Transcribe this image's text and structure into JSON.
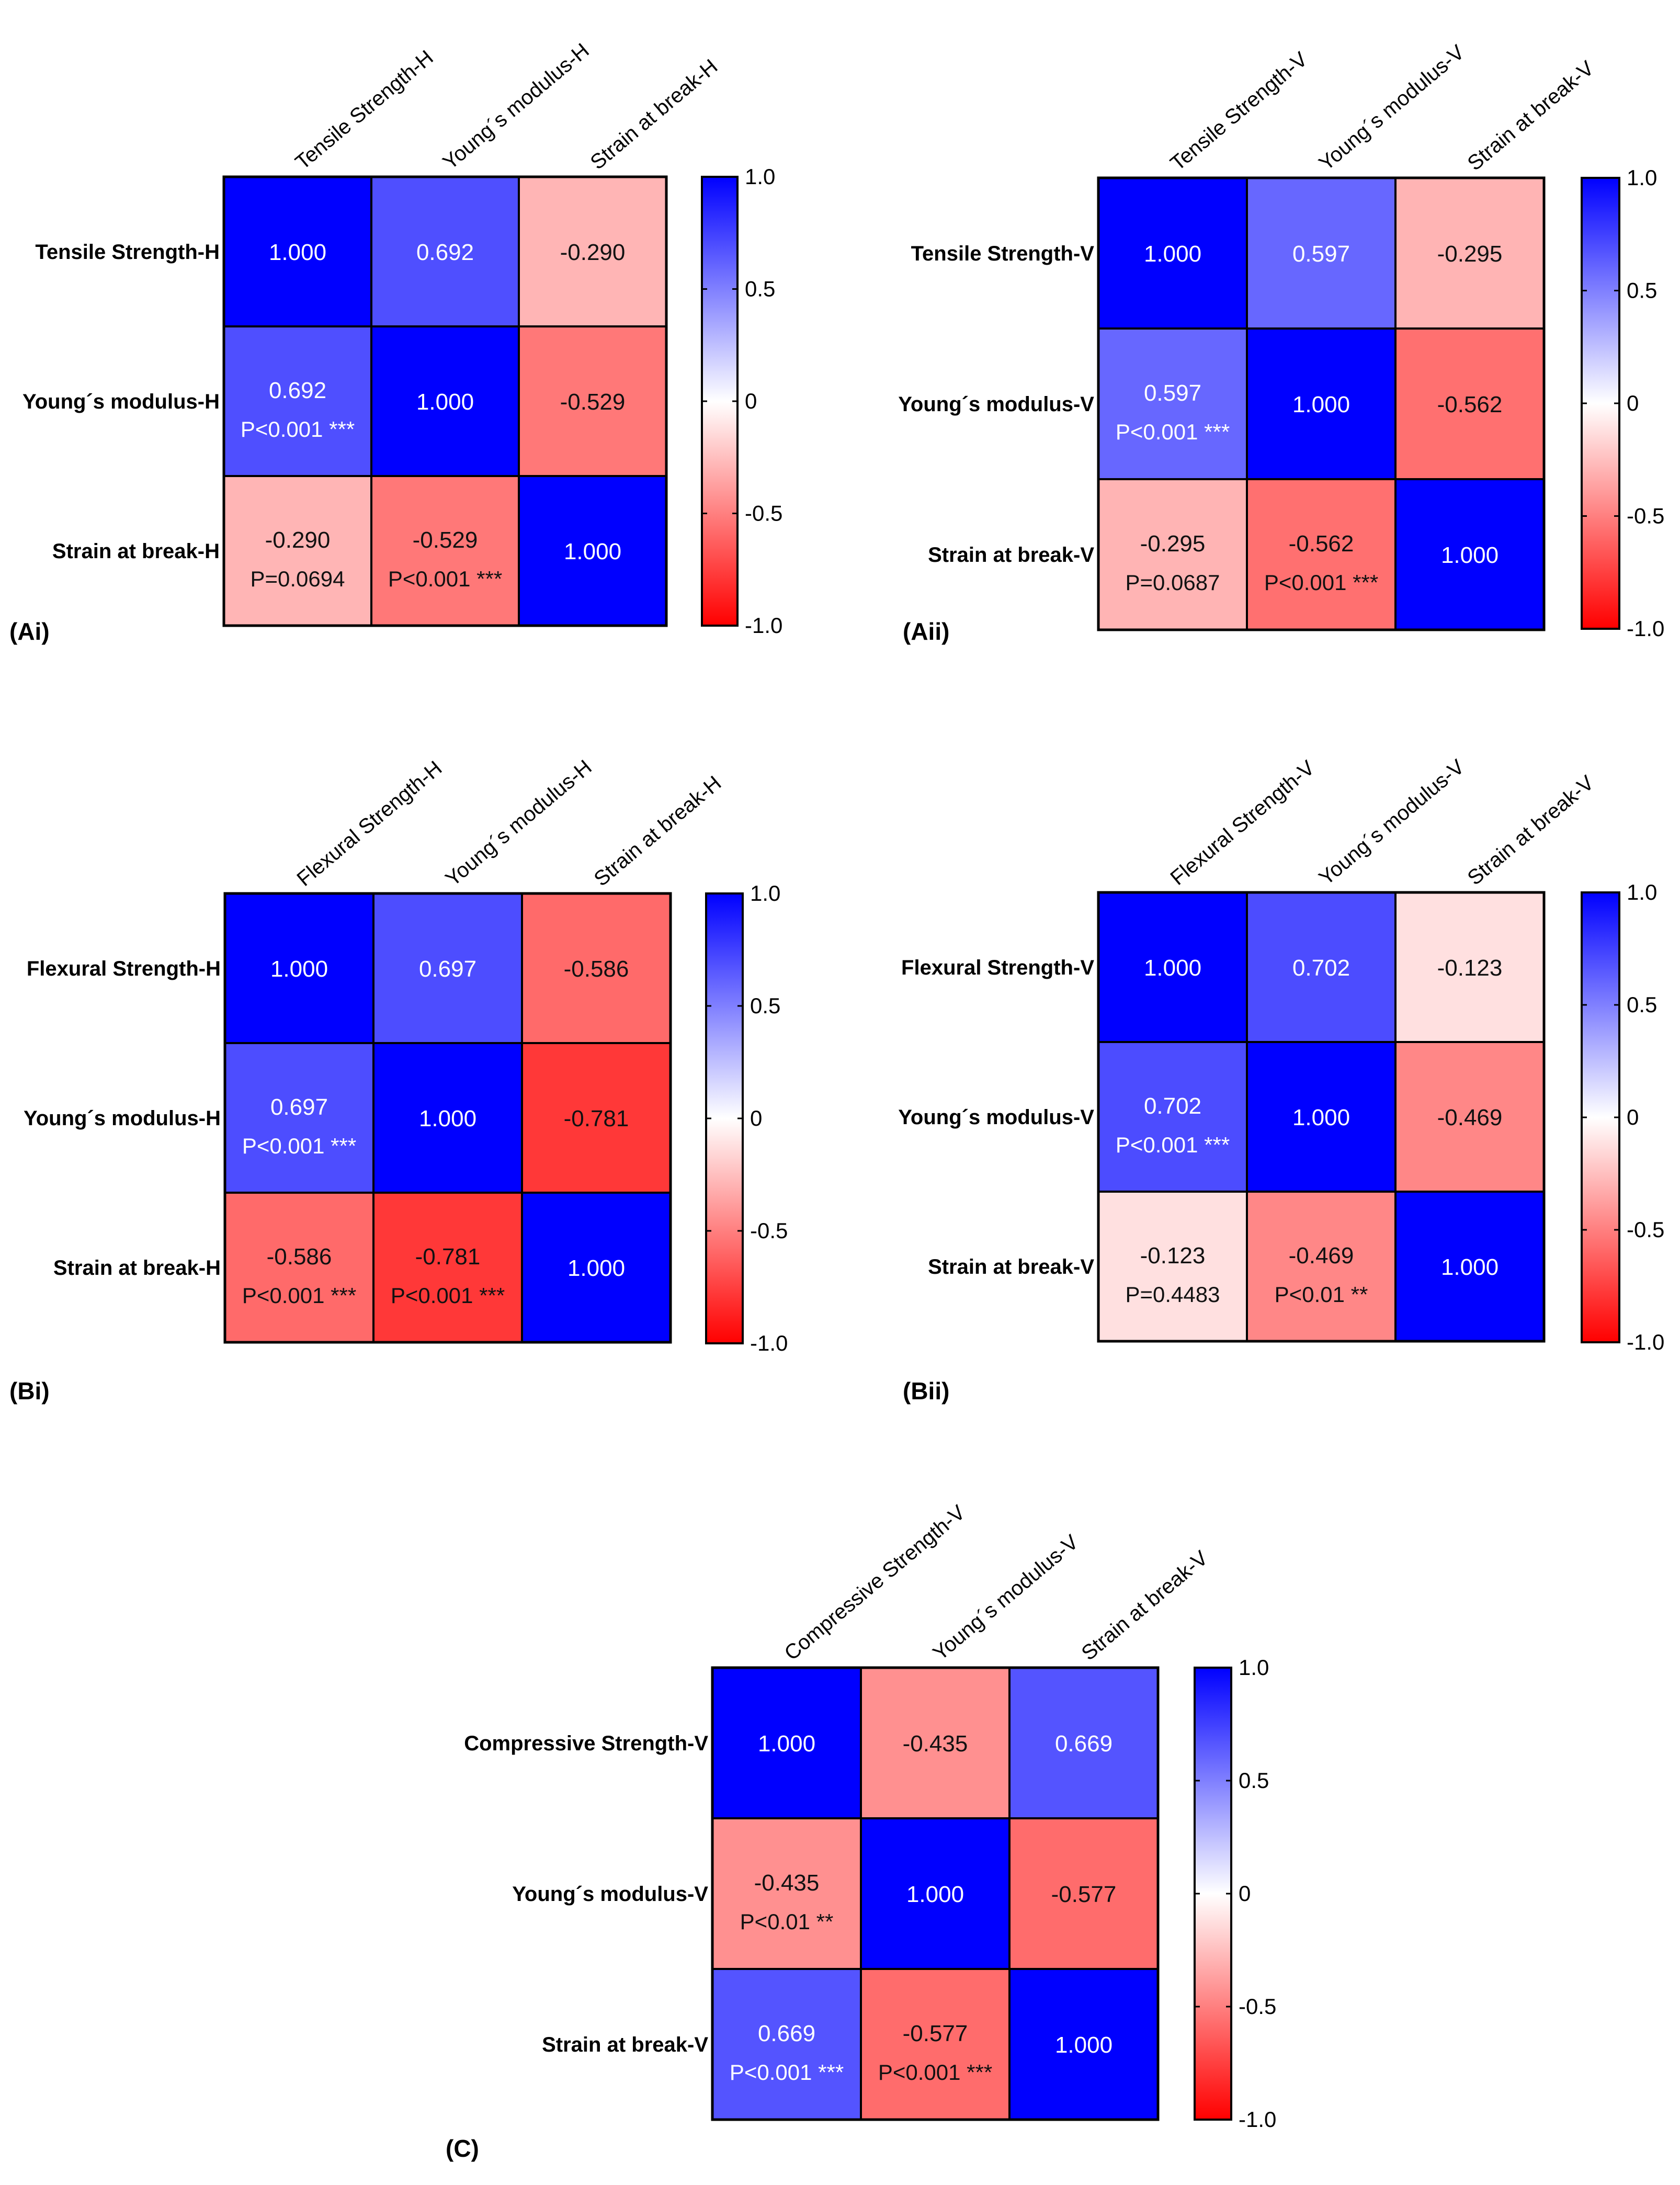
{
  "colors": {
    "positive": "#0000ff",
    "neutral": "#ffffff",
    "negative": "#ff0000",
    "light_text": "#ffffff",
    "dark_text": "#111111"
  },
  "chart_data": [
    {
      "type": "heatmap",
      "panel_label": "(Ai)",
      "labels": [
        "Tensile Strength-H",
        "Young´s modulus-H",
        "Strain at break-H"
      ],
      "values": [
        [
          1.0,
          0.692,
          -0.29
        ],
        [
          0.692,
          1.0,
          -0.529
        ],
        [
          -0.29,
          -0.529,
          1.0
        ]
      ],
      "cells": [
        [
          "1.000",
          "0.692",
          "-0.290"
        ],
        [
          "0.692",
          "1.000",
          "-0.529"
        ],
        [
          "-0.290",
          "-0.529",
          "1.000"
        ]
      ],
      "pvalues": [
        [
          "",
          "",
          ""
        ],
        [
          "P<0.001 ***",
          "",
          ""
        ],
        [
          "P=0.0694",
          "P<0.001 ***",
          ""
        ]
      ],
      "colorbar": {
        "range": [
          -1,
          1
        ],
        "ticks": [
          "1.0",
          "0.5",
          "0",
          "-0.5",
          "-1.0"
        ]
      }
    },
    {
      "type": "heatmap",
      "panel_label": "(Aii)",
      "labels": [
        "Tensile Strength-V",
        "Young´s modulus-V",
        "Strain at break-V"
      ],
      "values": [
        [
          1.0,
          0.597,
          -0.295
        ],
        [
          0.597,
          1.0,
          -0.562
        ],
        [
          -0.295,
          -0.562,
          1.0
        ]
      ],
      "cells": [
        [
          "1.000",
          "0.597",
          "-0.295"
        ],
        [
          "0.597",
          "1.000",
          "-0.562"
        ],
        [
          "-0.295",
          "-0.562",
          "1.000"
        ]
      ],
      "pvalues": [
        [
          "",
          "",
          ""
        ],
        [
          "P<0.001 ***",
          "",
          ""
        ],
        [
          "P=0.0687",
          "P<0.001 ***",
          ""
        ]
      ],
      "colorbar": {
        "range": [
          -1,
          1
        ],
        "ticks": [
          "1.0",
          "0.5",
          "0",
          "-0.5",
          "-1.0"
        ]
      }
    },
    {
      "type": "heatmap",
      "panel_label": "(Bi)",
      "labels": [
        "Flexural Strength-H",
        "Young´s modulus-H",
        "Strain at break-H"
      ],
      "values": [
        [
          1.0,
          0.697,
          -0.586
        ],
        [
          0.697,
          1.0,
          -0.781
        ],
        [
          -0.586,
          -0.781,
          1.0
        ]
      ],
      "cells": [
        [
          "1.000",
          "0.697",
          "-0.586"
        ],
        [
          "0.697",
          "1.000",
          "-0.781"
        ],
        [
          "-0.586",
          "-0.781",
          "1.000"
        ]
      ],
      "pvalues": [
        [
          "",
          "",
          ""
        ],
        [
          "P<0.001 ***",
          "",
          ""
        ],
        [
          "P<0.001 ***",
          "P<0.001 ***",
          ""
        ]
      ],
      "colorbar": {
        "range": [
          -1,
          1
        ],
        "ticks": [
          "1.0",
          "0.5",
          "0",
          "-0.5",
          "-1.0"
        ]
      }
    },
    {
      "type": "heatmap",
      "panel_label": "(Bii)",
      "labels": [
        "Flexural Strength-V",
        "Young´s modulus-V",
        "Strain at break-V"
      ],
      "values": [
        [
          1.0,
          0.702,
          -0.123
        ],
        [
          0.702,
          1.0,
          -0.469
        ],
        [
          -0.123,
          -0.469,
          1.0
        ]
      ],
      "cells": [
        [
          "1.000",
          "0.702",
          "-0.123"
        ],
        [
          "0.702",
          "1.000",
          "-0.469"
        ],
        [
          "-0.123",
          "-0.469",
          "1.000"
        ]
      ],
      "pvalues": [
        [
          "",
          "",
          ""
        ],
        [
          "P<0.001 ***",
          "",
          ""
        ],
        [
          "P=0.4483",
          "P<0.01 **",
          ""
        ]
      ],
      "colorbar": {
        "range": [
          -1,
          1
        ],
        "ticks": [
          "1.0",
          "0.5",
          "0",
          "-0.5",
          "-1.0"
        ]
      }
    },
    {
      "type": "heatmap",
      "panel_label": "(C)",
      "labels": [
        "Compressive Strength-V",
        "Young´s modulus-V",
        "Strain at break-V"
      ],
      "values": [
        [
          1.0,
          -0.435,
          0.669
        ],
        [
          -0.435,
          1.0,
          -0.577
        ],
        [
          0.669,
          -0.577,
          1.0
        ]
      ],
      "cells": [
        [
          "1.000",
          "-0.435",
          "0.669"
        ],
        [
          "-0.435",
          "1.000",
          "-0.577"
        ],
        [
          "0.669",
          "-0.577",
          "1.000"
        ]
      ],
      "pvalues": [
        [
          "",
          "",
          ""
        ],
        [
          "P<0.01 **",
          "",
          ""
        ],
        [
          "P<0.001 ***",
          "P<0.001 ***",
          ""
        ]
      ],
      "colorbar": {
        "range": [
          -1,
          1
        ],
        "ticks": [
          "1.0",
          "0.5",
          "0",
          "-0.5",
          "-1.0"
        ]
      }
    }
  ]
}
